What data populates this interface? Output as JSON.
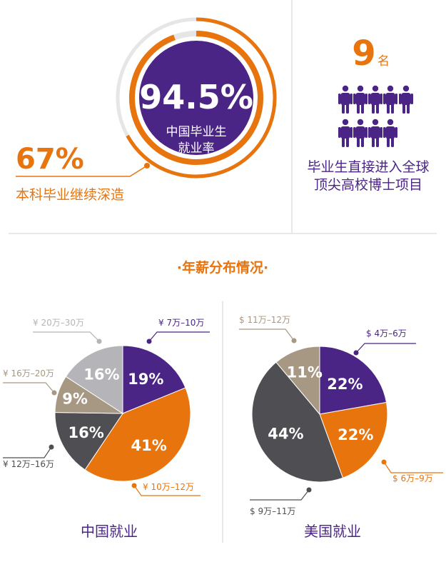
{
  "colors": {
    "purple": "#4b2586",
    "orange": "#e8740e",
    "dark_gray": "#4f4f53",
    "tan": "#a69883",
    "light_gray": "#b5b4b8",
    "ring_gray": "#e6e6e6",
    "text_gray": "#8c8c8c"
  },
  "stats": {
    "employment": {
      "value": "94.5%",
      "label_line1": "中国毕业生",
      "label_line2": "就业率",
      "fraction": 0.945
    },
    "further_study": {
      "value": "67%",
      "label": "本科毕业继续深造",
      "fraction": 0.67
    },
    "phd": {
      "value": "9",
      "unit": "名",
      "label_line1": "毕业生直接进入全球",
      "label_line2": "顶尖高校博士项目",
      "people_count": 9,
      "people_icon": "person-icon"
    }
  },
  "section_title": "·年薪分布情况·",
  "chart_data": [
    {
      "type": "pie",
      "title": "中国就业",
      "categories": [
        "¥ 7万–10万",
        "¥ 10万–12万",
        "¥ 12万–16万",
        "¥ 16万–20万",
        "¥ 20万–30万"
      ],
      "values": [
        19,
        41,
        16,
        9,
        16
      ],
      "value_labels": [
        "19%",
        "41%",
        "16%",
        "9%",
        "16%"
      ],
      "colors": [
        "#4b2586",
        "#e8740e",
        "#4f4f53",
        "#a69883",
        "#b5b4b8"
      ]
    },
    {
      "type": "pie",
      "title": "美国就业",
      "categories": [
        "$ 4万–6万",
        "$ 6万–9万",
        "$ 9万–11万",
        "$ 11万–12万"
      ],
      "values": [
        22,
        22,
        44,
        11
      ],
      "value_labels": [
        "22%",
        "22%",
        "44%",
        "11%"
      ],
      "colors": [
        "#4b2586",
        "#e8740e",
        "#4f4f53",
        "#a69883"
      ]
    }
  ]
}
